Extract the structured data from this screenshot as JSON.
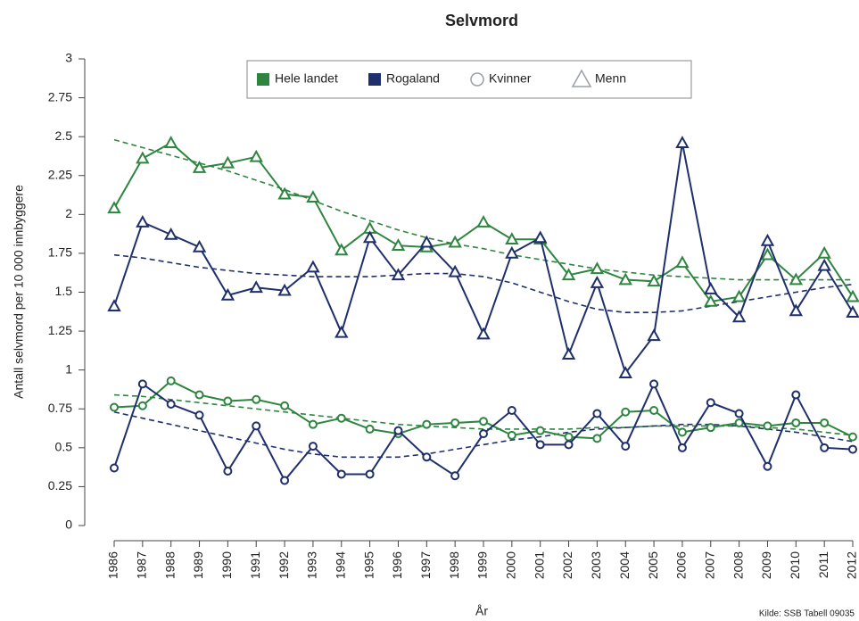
{
  "chart_data": {
    "type": "line",
    "title": "Selvmord",
    "x_label": "År",
    "y_label": "Antall selvmord per 10 000 innbyggere",
    "source": "Kilde: SSB Tabell 09035",
    "categories": [
      "1986",
      "1987",
      "1988",
      "1989",
      "1990",
      "1991",
      "1992",
      "1993",
      "1994",
      "1995",
      "1996",
      "1997",
      "1998",
      "1999",
      "2000",
      "2001",
      "2002",
      "2003",
      "2004",
      "2005",
      "2006",
      "2007",
      "2008",
      "2009",
      "2010",
      "2011",
      "2012"
    ],
    "ylim": [
      0,
      3
    ],
    "yticks": [
      0,
      0.25,
      0.5,
      0.75,
      1,
      1.25,
      1.5,
      1.75,
      2,
      2.25,
      2.5,
      2.75,
      3
    ],
    "legend": [
      {
        "label": "Hele landet",
        "shape": "square",
        "color": "#2e8540"
      },
      {
        "label": "Rogaland",
        "shape": "square",
        "color": "#1f2f6b"
      },
      {
        "label": "Kvinner",
        "shape": "circle",
        "color": "#9aa0a6"
      },
      {
        "label": "Menn",
        "shape": "triangle",
        "color": "#9aa0a6"
      }
    ],
    "series": [
      {
        "color": "#2e8540",
        "marker": "triangle",
        "values": [
          2.04,
          2.36,
          2.46,
          2.3,
          2.33,
          2.37,
          2.13,
          2.11,
          1.77,
          1.91,
          1.8,
          1.79,
          1.82,
          1.95,
          1.84,
          1.84,
          1.61,
          1.65,
          1.58,
          1.57,
          1.69,
          1.44,
          1.47,
          1.74,
          1.58,
          1.75,
          1.47
        ],
        "trend": [
          2.48,
          2.43,
          2.38,
          2.33,
          2.28,
          2.22,
          2.16,
          2.09,
          2.02,
          1.96,
          1.9,
          1.85,
          1.81,
          1.78,
          1.74,
          1.71,
          1.68,
          1.65,
          1.63,
          1.61,
          1.6,
          1.59,
          1.58,
          1.58,
          1.58,
          1.58,
          1.58
        ]
      },
      {
        "color": "#1f2f6b",
        "marker": "triangle",
        "values": [
          1.41,
          1.95,
          1.87,
          1.79,
          1.48,
          1.53,
          1.51,
          1.66,
          1.24,
          1.85,
          1.61,
          1.82,
          1.63,
          1.23,
          1.75,
          1.85,
          1.1,
          1.56,
          0.98,
          1.22,
          2.46,
          1.52,
          1.34,
          1.83,
          1.38,
          1.67,
          1.37
        ],
        "trend": [
          1.74,
          1.72,
          1.69,
          1.66,
          1.64,
          1.62,
          1.61,
          1.6,
          1.6,
          1.6,
          1.61,
          1.62,
          1.62,
          1.6,
          1.56,
          1.5,
          1.44,
          1.39,
          1.37,
          1.37,
          1.38,
          1.41,
          1.44,
          1.47,
          1.5,
          1.53,
          1.55
        ]
      },
      {
        "color": "#2e8540",
        "marker": "circle",
        "values": [
          0.76,
          0.77,
          0.93,
          0.84,
          0.8,
          0.81,
          0.77,
          0.65,
          0.69,
          0.62,
          0.59,
          0.65,
          0.66,
          0.67,
          0.58,
          0.61,
          0.57,
          0.56,
          0.73,
          0.74,
          0.6,
          0.63,
          0.66,
          0.64,
          0.66,
          0.66,
          0.57
        ],
        "trend": [
          0.84,
          0.83,
          0.81,
          0.79,
          0.77,
          0.75,
          0.73,
          0.71,
          0.69,
          0.67,
          0.65,
          0.64,
          0.63,
          0.62,
          0.62,
          0.62,
          0.62,
          0.63,
          0.63,
          0.64,
          0.64,
          0.64,
          0.64,
          0.63,
          0.62,
          0.6,
          0.58
        ]
      },
      {
        "color": "#1f2f6b",
        "marker": "circle",
        "values": [
          0.37,
          0.91,
          0.78,
          0.71,
          0.35,
          0.64,
          0.29,
          0.51,
          0.33,
          0.33,
          0.61,
          0.44,
          0.32,
          0.59,
          0.74,
          0.52,
          0.52,
          0.72,
          0.51,
          0.91,
          0.5,
          0.79,
          0.72,
          0.38,
          0.84,
          0.5,
          0.49
        ],
        "trend": [
          0.73,
          0.69,
          0.65,
          0.61,
          0.57,
          0.53,
          0.49,
          0.46,
          0.44,
          0.44,
          0.44,
          0.46,
          0.49,
          0.52,
          0.55,
          0.57,
          0.6,
          0.62,
          0.63,
          0.64,
          0.65,
          0.65,
          0.64,
          0.62,
          0.6,
          0.57,
          0.54
        ]
      }
    ]
  }
}
